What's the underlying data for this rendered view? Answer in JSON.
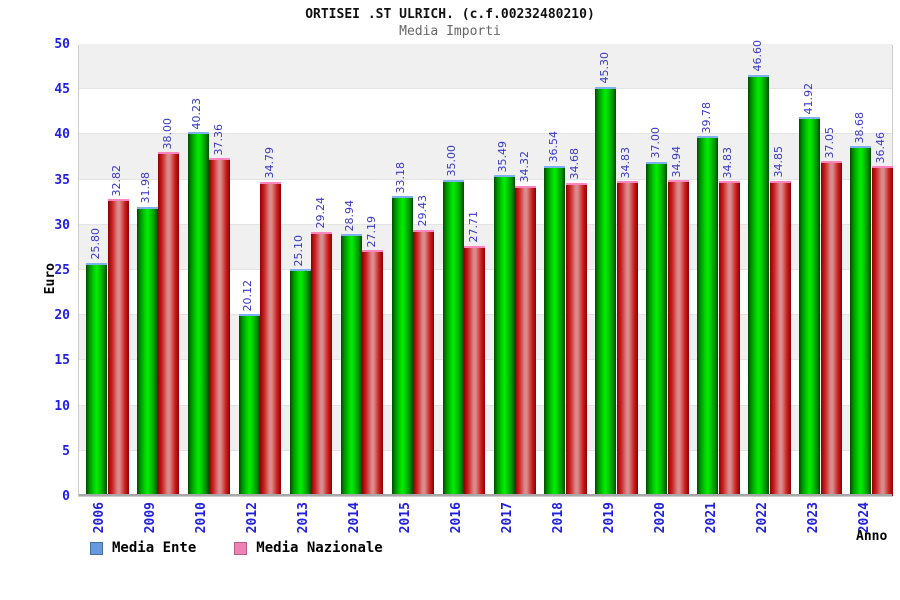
{
  "header": {
    "title": "ORTISEI .ST ULRICH. (c.f.00232480210)",
    "subtitle": "Media Importi"
  },
  "chart_data": {
    "type": "bar",
    "title": "ORTISEI .ST ULRICH. (c.f.00232480210)",
    "subtitle": "Media Importi",
    "xlabel": "Anno",
    "ylabel": "Euro",
    "ylim": [
      0,
      50
    ],
    "ytick_step": 5,
    "yticks": [
      0,
      5,
      10,
      15,
      20,
      25,
      30,
      35,
      40,
      45,
      50
    ],
    "grid": "horizontal-bands-alternating",
    "legend_position": "bottom-left",
    "value_label_decimals": 2,
    "categories": [
      "2006",
      "2009",
      "2010",
      "2012",
      "2013",
      "2014",
      "2015",
      "2016",
      "2017",
      "2018",
      "2019",
      "2020",
      "2021",
      "2022",
      "2023",
      "2024"
    ],
    "series": [
      {
        "name": "Media Ente",
        "values": [
          25.8,
          31.98,
          40.23,
          20.12,
          25.1,
          28.94,
          33.18,
          35.0,
          35.49,
          36.54,
          45.3,
          37.0,
          39.78,
          46.6,
          41.92,
          38.68
        ],
        "bar_color": "#00cc00",
        "bar_cap_color": "#7fb0f0",
        "legend_swatch_color": "#6699dd"
      },
      {
        "name": "Media Nazionale",
        "values": [
          32.82,
          38.0,
          37.36,
          34.79,
          29.24,
          27.19,
          29.43,
          27.71,
          34.32,
          34.68,
          34.83,
          34.94,
          34.83,
          34.85,
          37.05,
          36.46
        ],
        "bar_color": "#cc2222",
        "bar_cap_color": "#ff85c0",
        "legend_swatch_color": "#ee82b4"
      }
    ]
  },
  "colors": {
    "axis_tick_text": "#2121dd",
    "value_label_text": "#3939c4",
    "band_gray": "#f0f0f0",
    "plot_border": "#cccccc",
    "subtitle_text": "#666666"
  }
}
